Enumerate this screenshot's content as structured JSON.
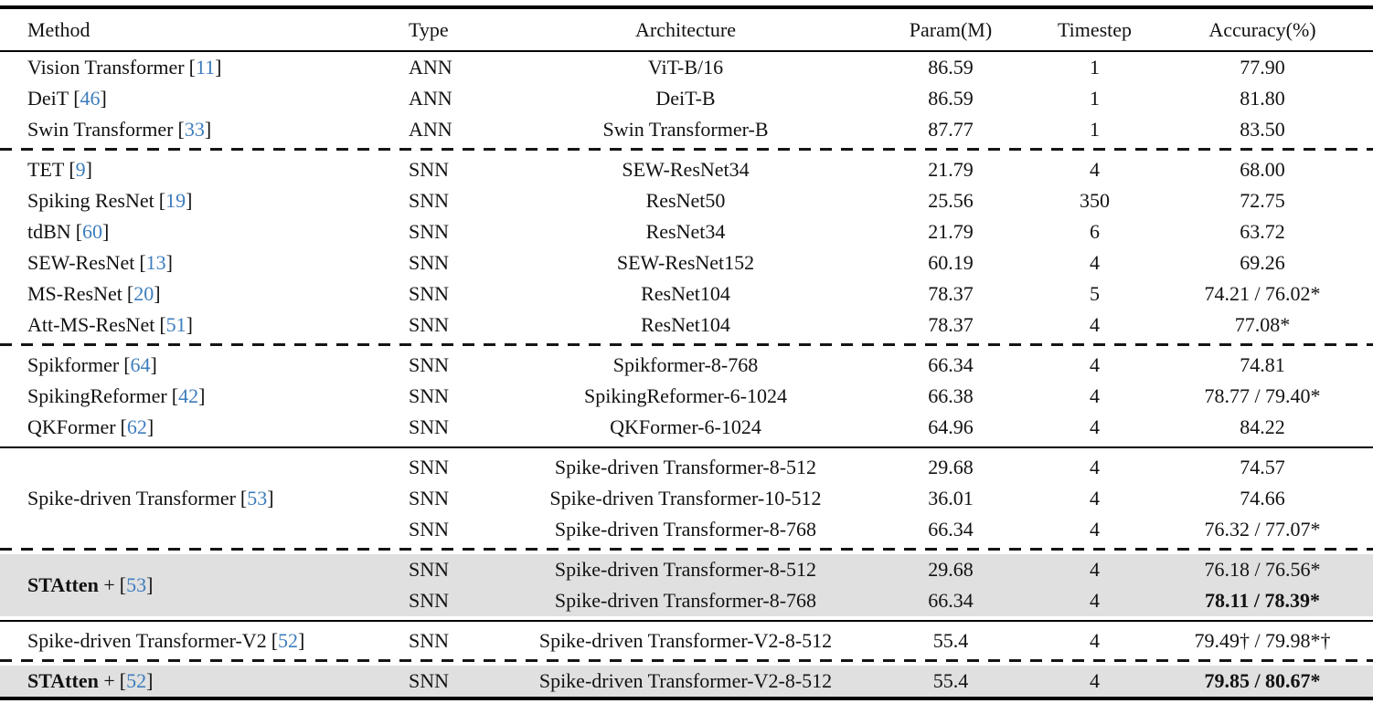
{
  "colors": {
    "citation_blue": "#3d7dbd",
    "highlight_gray": "#e0e0e0",
    "rule_black": "#000000",
    "background": "#ffffff"
  },
  "header": {
    "method": "Method",
    "type": "Type",
    "architecture": "Architecture",
    "param": "Param(M)",
    "timestep": "Timestep",
    "accuracy": "Accuracy(%)"
  },
  "rows": {
    "vit": {
      "method": "Vision Transformer",
      "cite": "11",
      "type": "ANN",
      "arch": "ViT-B/16",
      "param": "86.59",
      "timestep": "1",
      "acc": "77.90"
    },
    "deit": {
      "method": "DeiT",
      "cite": "46",
      "type": "ANN",
      "arch": "DeiT-B",
      "param": "86.59",
      "timestep": "1",
      "acc": "81.80"
    },
    "swin": {
      "method": "Swin Transformer",
      "cite": "33",
      "type": "ANN",
      "arch": "Swin Transformer-B",
      "param": "87.77",
      "timestep": "1",
      "acc": "83.50"
    },
    "tet": {
      "method": "TET",
      "cite": "9",
      "type": "SNN",
      "arch": "SEW-ResNet34",
      "param": "21.79",
      "timestep": "4",
      "acc": "68.00"
    },
    "spiking_resnet": {
      "method": "Spiking ResNet",
      "cite": "19",
      "type": "SNN",
      "arch": "ResNet50",
      "param": "25.56",
      "timestep": "350",
      "acc": "72.75"
    },
    "tdbn": {
      "method": "tdBN",
      "cite": "60",
      "type": "SNN",
      "arch": "ResNet34",
      "param": "21.79",
      "timestep": "6",
      "acc": "63.72"
    },
    "sew_resnet": {
      "method": "SEW-ResNet",
      "cite": "13",
      "type": "SNN",
      "arch": "SEW-ResNet152",
      "param": "60.19",
      "timestep": "4",
      "acc": "69.26"
    },
    "ms_resnet": {
      "method": "MS-ResNet",
      "cite": "20",
      "type": "SNN",
      "arch": "ResNet104",
      "param": "78.37",
      "timestep": "5",
      "acc": "74.21 / 76.02*"
    },
    "att_ms_resnet": {
      "method": "Att-MS-ResNet",
      "cite": "51",
      "type": "SNN",
      "arch": "ResNet104",
      "param": "78.37",
      "timestep": "4",
      "acc": "77.08*"
    },
    "spikformer": {
      "method": "Spikformer",
      "cite": "64",
      "type": "SNN",
      "arch": "Spikformer-8-768",
      "param": "66.34",
      "timestep": "4",
      "acc": "74.81"
    },
    "spikingreformer": {
      "method": "SpikingReformer",
      "cite": "42",
      "type": "SNN",
      "arch": "SpikingReformer-6-1024",
      "param": "66.38",
      "timestep": "4",
      "acc": "78.77 / 79.40*"
    },
    "qkformer": {
      "method": "QKFormer",
      "cite": "62",
      "type": "SNN",
      "arch": "QKFormer-6-1024",
      "param": "64.96",
      "timestep": "4",
      "acc": "84.22"
    },
    "sdt": {
      "method": "Spike-driven Transformer",
      "cite": "53",
      "sub": [
        {
          "type": "SNN",
          "arch": "Spike-driven Transformer-8-512",
          "param": "29.68",
          "timestep": "4",
          "acc": "74.57"
        },
        {
          "type": "SNN",
          "arch": "Spike-driven Transformer-10-512",
          "param": "36.01",
          "timestep": "4",
          "acc": "74.66"
        },
        {
          "type": "SNN",
          "arch": "Spike-driven Transformer-8-768",
          "param": "66.34",
          "timestep": "4",
          "acc": "76.32 / 77.07*"
        }
      ]
    },
    "statten_53": {
      "method_bold": "STAtten",
      "method_joiner": "+",
      "cite": "53",
      "sub": [
        {
          "type": "SNN",
          "arch": "Spike-driven Transformer-8-512",
          "param": "29.68",
          "timestep": "4",
          "acc": "76.18 / 76.56*"
        },
        {
          "type": "SNN",
          "arch": "Spike-driven Transformer-8-768",
          "param": "66.34",
          "timestep": "4",
          "acc": "78.11 / 78.39*"
        }
      ]
    },
    "sdt_v2": {
      "method": "Spike-driven Transformer-V2",
      "cite": "52",
      "type": "SNN",
      "arch": "Spike-driven Transformer-V2-8-512",
      "param": "55.4",
      "timestep": "4",
      "acc": "79.49† / 79.98*†"
    },
    "statten_52": {
      "method_bold": "STAtten",
      "method_joiner": "+",
      "cite": "52",
      "type": "SNN",
      "arch": "Spike-driven Transformer-V2-8-512",
      "param": "55.4",
      "timestep": "4",
      "acc": "79.85 / 80.67*"
    }
  }
}
